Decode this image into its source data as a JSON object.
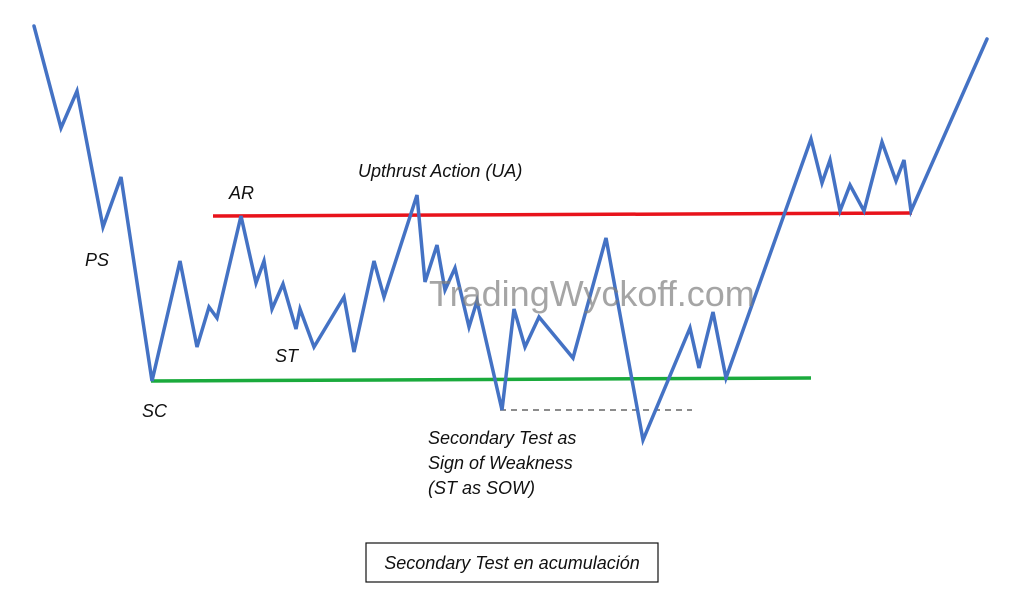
{
  "labels": {
    "ps": "PS",
    "sc": "SC",
    "ar": "AR",
    "st": "ST",
    "ua": "Upthrust Action (UA)",
    "sow_line1": "Secondary Test as",
    "sow_line2": "Sign of Weakness",
    "sow_line3": "(ST as SOW)"
  },
  "watermark": "TradingWyckoff.com",
  "caption": "Secondary Test en acumulación",
  "colors": {
    "price": "#4472c4",
    "resistance": "#e8131b",
    "support": "#1aaa3c",
    "dashed": "#666666",
    "text": "#111111"
  }
}
